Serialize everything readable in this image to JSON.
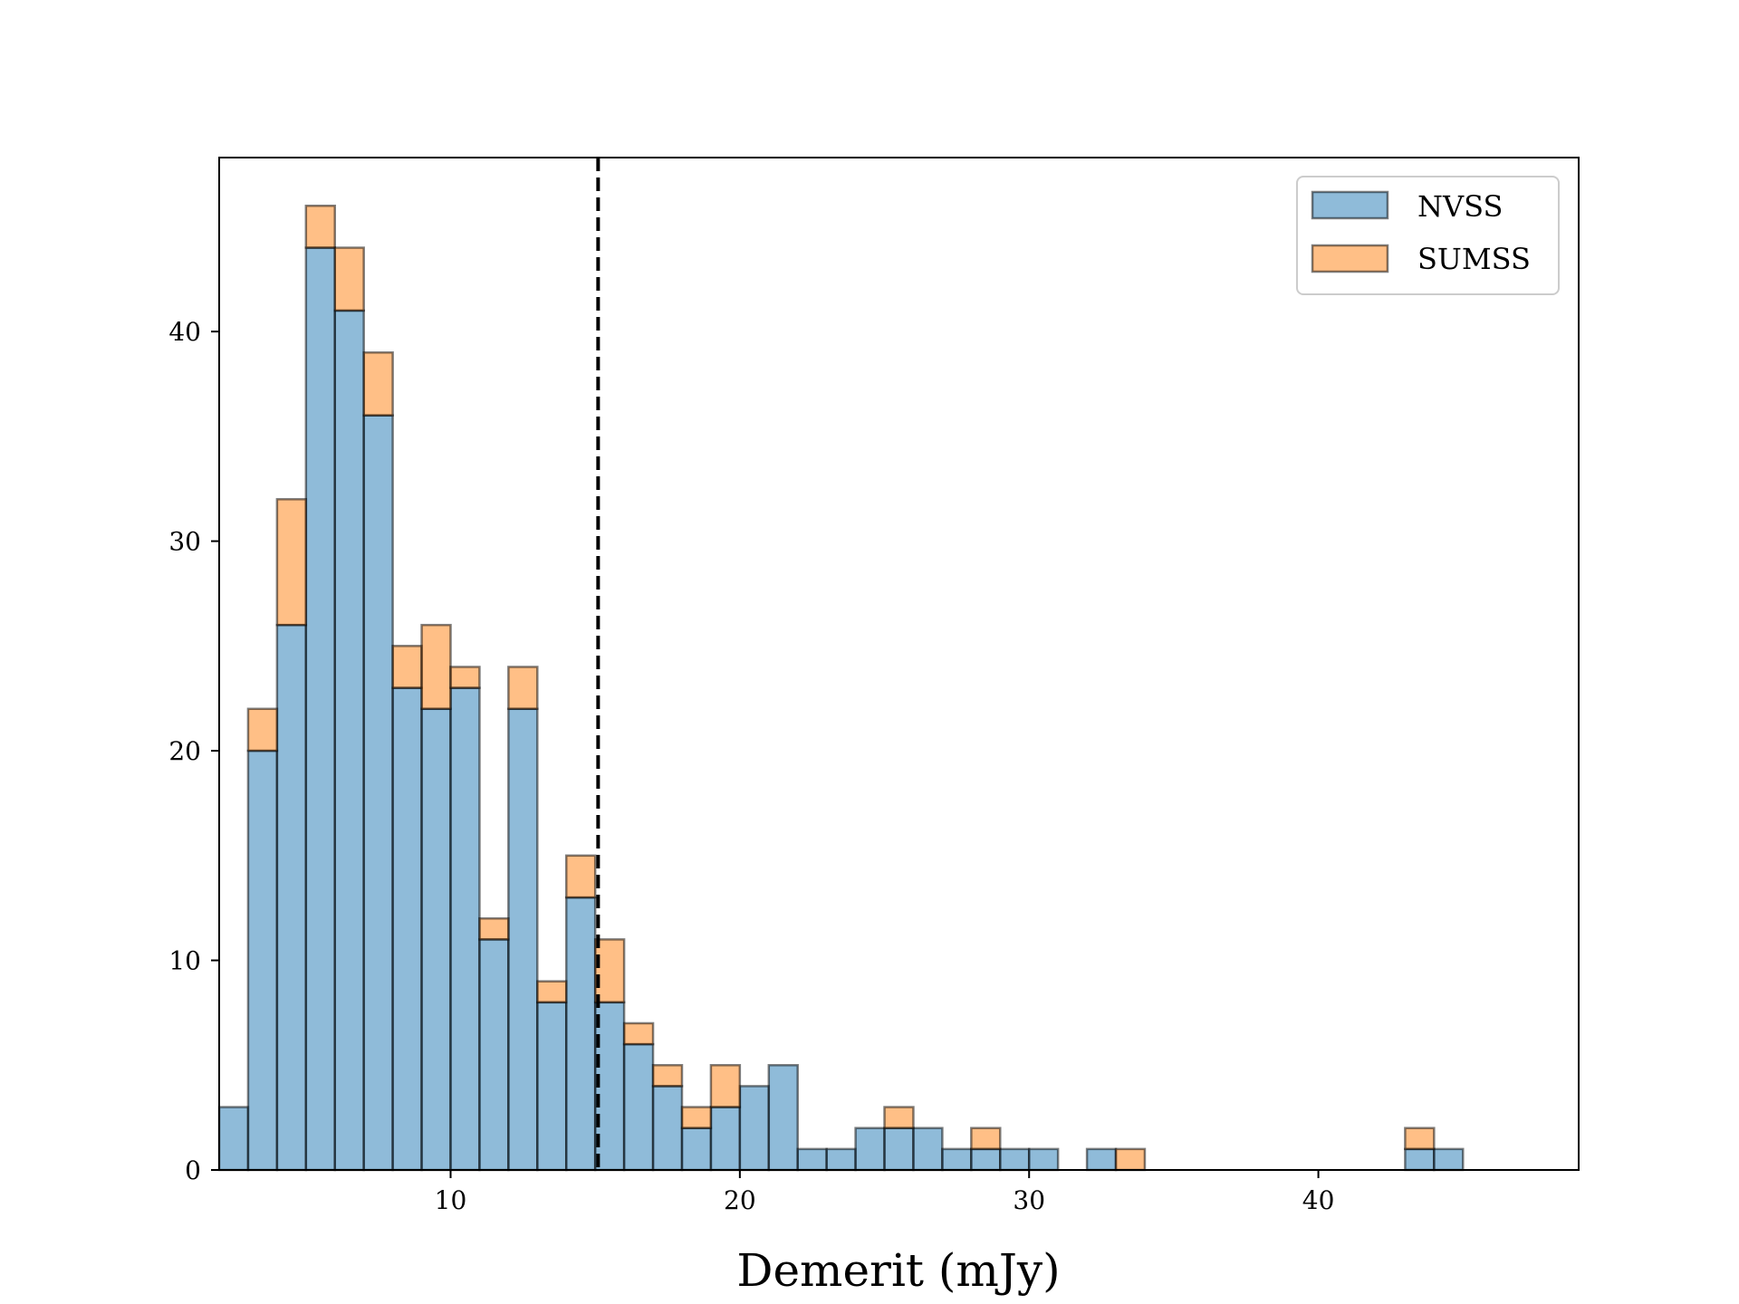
{
  "chart_data": {
    "type": "bar",
    "subtype": "stacked-histogram",
    "xlabel": "Demerit (mJy)",
    "ylabel": "",
    "xlim": [
      2,
      49
    ],
    "ylim": [
      0,
      48.3
    ],
    "xticks": [
      10,
      20,
      30,
      40
    ],
    "yticks": [
      0,
      10,
      20,
      30,
      40
    ],
    "bin_start": 2,
    "bin_width": 1,
    "series": [
      {
        "name": "NVSS",
        "color": "#1f77b4",
        "values": [
          3,
          20,
          26,
          44,
          41,
          36,
          23,
          22,
          23,
          11,
          22,
          8,
          13,
          8,
          6,
          4,
          2,
          3,
          4,
          5,
          1,
          1,
          2,
          2,
          2,
          1,
          1,
          1,
          1,
          0,
          1,
          0,
          0,
          0,
          0,
          0,
          0,
          0,
          0,
          0,
          0,
          1,
          1
        ]
      },
      {
        "name": "SUMSS",
        "color": "#ff7f0e",
        "values": [
          0,
          2,
          6,
          2,
          3,
          3,
          2,
          4,
          1,
          1,
          2,
          1,
          2,
          3,
          1,
          1,
          1,
          2,
          0,
          0,
          0,
          0,
          0,
          1,
          0,
          0,
          1,
          0,
          0,
          0,
          0,
          1,
          0,
          0,
          0,
          0,
          0,
          0,
          0,
          0,
          0,
          1,
          0
        ]
      }
    ],
    "vline": {
      "x": 15.1,
      "style": "dashed"
    },
    "legend": {
      "placement": "top-right",
      "entries": [
        "NVSS",
        "SUMSS"
      ]
    },
    "grid": false
  }
}
